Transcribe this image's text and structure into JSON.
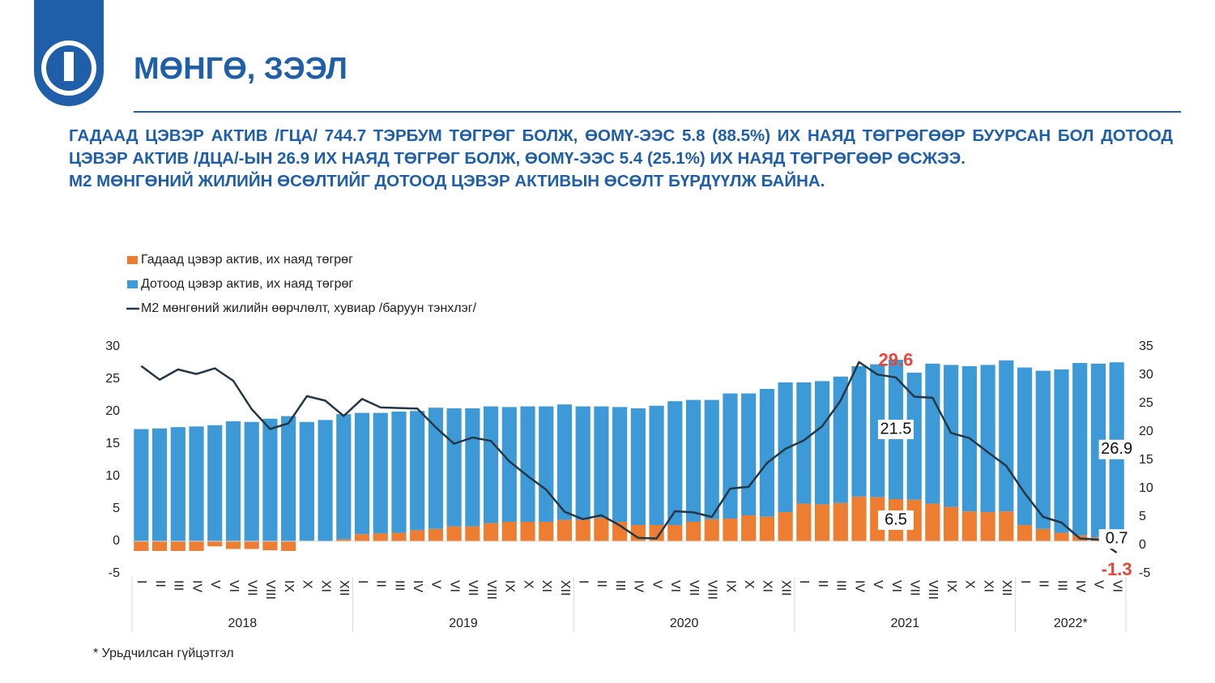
{
  "header": {
    "title": "МӨНГӨ, ЗЭЭЛ"
  },
  "summary": [
    "ГАДААД ЦЭВЭР АКТИВ /ГЦА/ 744.7 ТЭРБУМ ТӨГРӨГ БОЛЖ, ӨОМҮ-ЭЭС 5.8 (88.5%) ИХ НАЯД ТӨГРӨГӨӨР БУУРСАН БОЛ ДОТООД ЦЭВЭР АКТИВ /ДЦА/-ЫН 26.9 ИХ НАЯД ТӨГРӨГ БОЛЖ, ӨОМҮ-ЭЭС 5.4 (25.1%) ИХ НАЯД ТӨГРӨГӨӨР ӨСЖЭЭ.",
    "M2 МӨНГӨНИЙ ЖИЛИЙН ӨСӨЛТИЙГ ДОТООД ЦЭВЭР АКТИВЫН ӨСӨЛТ БҮРДҮҮЛЖ БАЙНА."
  ],
  "chart_data": {
    "type": "bar",
    "stacked": true,
    "categories": [
      "I",
      "II",
      "III",
      "IV",
      "V",
      "VI",
      "VII",
      "VIII",
      "IX",
      "X",
      "XI",
      "XII",
      "I",
      "II",
      "III",
      "IV",
      "V",
      "VI",
      "VII",
      "VIII",
      "IX",
      "X",
      "XI",
      "XII",
      "I",
      "II",
      "III",
      "IV",
      "V",
      "VI",
      "VII",
      "VIII",
      "IX",
      "X",
      "XI",
      "XII",
      "I",
      "II",
      "III",
      "IV",
      "V",
      "VI",
      "VII",
      "VIII",
      "IX",
      "X",
      "XI",
      "XII",
      "I",
      "II",
      "III",
      "IV",
      "V",
      "VI"
    ],
    "year_groups": [
      {
        "label": "2018",
        "count": 12
      },
      {
        "label": "2019",
        "count": 12
      },
      {
        "label": "2020",
        "count": 12
      },
      {
        "label": "2021",
        "count": 12
      },
      {
        "label": "2022*",
        "count": 6
      }
    ],
    "series": [
      {
        "name": "Гадаад цэвэр актив, их наяд төгрөг",
        "color": "#ed7d31",
        "values": [
          -1.5,
          -1.5,
          -1.5,
          -1.5,
          -0.8,
          -1.2,
          -1.2,
          -1.4,
          -1.5,
          0.1,
          0,
          0.3,
          1.1,
          1.2,
          1.3,
          1.7,
          1.9,
          2.3,
          2.3,
          2.8,
          3.0,
          3.0,
          3.0,
          3.3,
          3.3,
          3.6,
          3.0,
          2.5,
          2.5,
          2.5,
          3.0,
          3.4,
          3.5,
          4.0,
          3.8,
          4.5,
          5.8,
          5.7,
          5.9,
          6.9,
          6.8,
          6.5,
          6.4,
          5.8,
          5.3,
          4.6,
          4.5,
          4.6,
          2.5,
          1.9,
          1.3,
          0.9,
          0.6,
          0.7
        ],
        "value_labels": [
          null,
          null,
          null,
          null,
          null,
          null,
          null,
          null,
          null,
          null,
          null,
          null,
          null,
          null,
          null,
          null,
          null,
          null,
          null,
          null,
          null,
          null,
          null,
          null,
          null,
          null,
          null,
          null,
          null,
          null,
          null,
          null,
          null,
          null,
          null,
          null,
          null,
          null,
          null,
          null,
          null,
          "6.5",
          null,
          null,
          null,
          null,
          null,
          null,
          null,
          null,
          null,
          null,
          null,
          "0.7"
        ]
      },
      {
        "name": "Дотоод цэвэр актив, их наяд төгрөг",
        "color": "#3e9ad6",
        "values": [
          17.3,
          17.4,
          17.6,
          17.7,
          17.9,
          18.5,
          18.4,
          18.9,
          19.3,
          18.3,
          18.7,
          19.3,
          18.7,
          18.6,
          18.7,
          18.4,
          18.7,
          18.2,
          18.2,
          18.0,
          17.7,
          17.8,
          17.8,
          17.8,
          17.5,
          17.2,
          17.7,
          18.0,
          18.4,
          19.1,
          18.8,
          18.4,
          19.3,
          18.8,
          19.7,
          20.0,
          18.7,
          19.0,
          19.5,
          20.1,
          20.5,
          21.5,
          19.6,
          21.6,
          21.9,
          22.4,
          22.7,
          23.3,
          24.3,
          24.4,
          25.2,
          26.6,
          26.8,
          26.9
        ],
        "value_labels": [
          null,
          null,
          null,
          null,
          null,
          null,
          null,
          null,
          null,
          null,
          null,
          null,
          null,
          null,
          null,
          null,
          null,
          null,
          null,
          null,
          null,
          null,
          null,
          null,
          null,
          null,
          null,
          null,
          null,
          null,
          null,
          null,
          null,
          null,
          null,
          null,
          null,
          null,
          null,
          null,
          null,
          "21.5",
          null,
          null,
          null,
          null,
          null,
          null,
          null,
          null,
          null,
          null,
          null,
          "26.9"
        ]
      },
      {
        "name": "М2 мөнгөний жилийн өөрчлөлт, хувиар /баруун тэнхлэг/",
        "color": "#243746",
        "type": "line",
        "axis": "y2",
        "label_color": "#e8463a",
        "values": [
          31.6,
          29.2,
          31.0,
          30.2,
          31.2,
          29.0,
          24.0,
          20.5,
          21.5,
          26.3,
          25.5,
          22.8,
          25.8,
          24.3,
          24.2,
          24.1,
          20.8,
          17.9,
          19.0,
          18.4,
          14.8,
          12.2,
          9.8,
          5.9,
          4.6,
          5.3,
          3.5,
          1.3,
          1.2,
          6.0,
          5.8,
          5.0,
          10.0,
          10.3,
          14.5,
          17.0,
          18.5,
          21.0,
          25.5,
          32.3,
          30.1,
          29.6,
          26.2,
          26.0,
          19.8,
          18.9,
          16.4,
          14.0,
          9.2,
          5.0,
          4.0,
          1.2,
          1.0,
          -1.3
        ],
        "value_labels": [
          null,
          null,
          null,
          null,
          null,
          null,
          null,
          null,
          null,
          null,
          null,
          null,
          null,
          null,
          null,
          null,
          null,
          null,
          null,
          null,
          null,
          null,
          null,
          null,
          null,
          null,
          null,
          null,
          null,
          null,
          null,
          null,
          null,
          null,
          null,
          null,
          null,
          null,
          null,
          null,
          null,
          "29.6",
          null,
          null,
          null,
          null,
          null,
          null,
          null,
          null,
          null,
          null,
          null,
          "-1.3"
        ]
      }
    ],
    "ylim": [
      -5,
      30
    ],
    "yticks": [
      -5,
      0,
      5,
      10,
      15,
      20,
      25,
      30
    ],
    "y2lim": [
      -5,
      35
    ],
    "y2ticks": [
      -5,
      0,
      5,
      10,
      15,
      20,
      25,
      30,
      35
    ],
    "legend": "top-left"
  },
  "footnote": "* Урьдчилсан гүйцэтгэл"
}
